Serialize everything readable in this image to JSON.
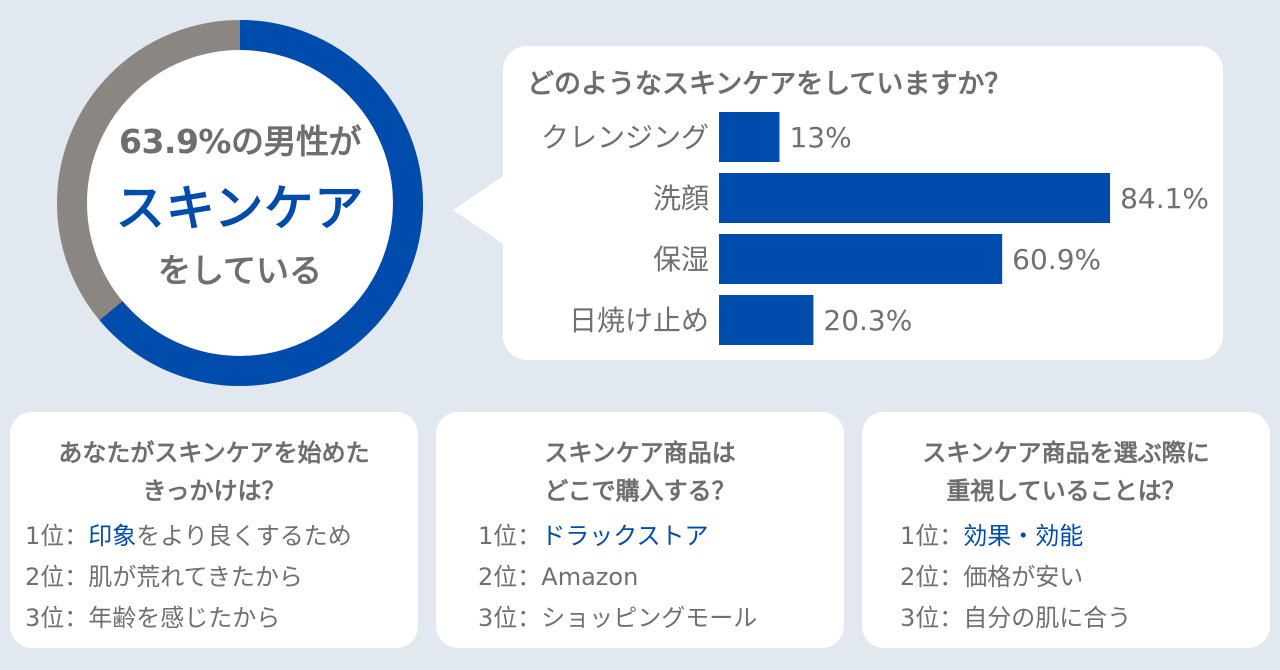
{
  "colors": {
    "accent": "#004cac",
    "ring_rest": "#8c8683",
    "text": "#6e6e6e",
    "background": "#e1e8ef"
  },
  "donut": {
    "percent_value": 63.9,
    "line1": "63.9%の男性が",
    "line2": "スキンケア",
    "line3": "をしている"
  },
  "chart_data": {
    "type": "bar",
    "orientation": "horizontal",
    "title": "どのようなスキンケアをしていますか？",
    "categories": [
      "クレンジング",
      "洗顔",
      "保湿",
      "日焼け止め"
    ],
    "values": [
      13,
      84.1,
      60.9,
      20.3
    ],
    "value_labels": [
      "13%",
      "84.1%",
      "60.9%",
      "20.3%"
    ],
    "unit": "%",
    "xlim": [
      0,
      100
    ]
  },
  "cards": [
    {
      "title_lines": [
        "あなたがスキンケアを始めた",
        "きっかけは？"
      ],
      "ranks": [
        {
          "prefix": "1位：",
          "highlight": "印象",
          "rest": "をより良くするため"
        },
        {
          "prefix": "2位：",
          "highlight": "",
          "rest": "肌が荒れてきたから"
        },
        {
          "prefix": "3位：",
          "highlight": "",
          "rest": "年齢を感じたから"
        }
      ]
    },
    {
      "title_lines": [
        "スキンケア商品は",
        "どこで購入する？"
      ],
      "ranks": [
        {
          "prefix": "1位：",
          "highlight": "ドラックストア",
          "rest": ""
        },
        {
          "prefix": "2位：",
          "highlight": "",
          "rest": "Amazon"
        },
        {
          "prefix": "3位：",
          "highlight": "",
          "rest": "ショッピングモール"
        }
      ]
    },
    {
      "title_lines": [
        "スキンケア商品を選ぶ際に",
        "重視していることは？"
      ],
      "ranks": [
        {
          "prefix": "1位：",
          "highlight": "効果・効能",
          "rest": ""
        },
        {
          "prefix": "2位：",
          "highlight": "",
          "rest": "価格が安い"
        },
        {
          "prefix": "3位：",
          "highlight": "",
          "rest": "自分の肌に合う"
        }
      ]
    }
  ]
}
